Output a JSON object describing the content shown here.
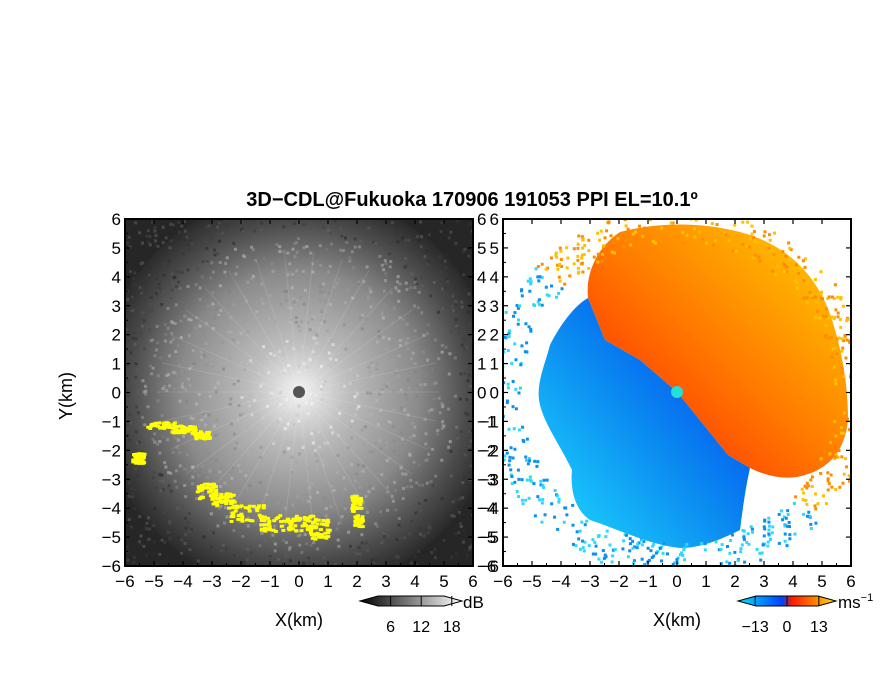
{
  "title": "3D−CDL@Fukuoka 170906 191053 PPI EL=10.1º",
  "colors": {
    "frame": "#000000",
    "echo_highlight": "#ffff00",
    "radar_center_left": "#555555",
    "radar_center_right": "#22e0d8"
  },
  "chart_data": [
    {
      "type": "heatmap",
      "panel": "left",
      "quantity": "SNR",
      "xlabel": "X(km)",
      "ylabel": "Y(km)",
      "xlim": [
        -6,
        6
      ],
      "ylim": [
        -6,
        6
      ],
      "xticks": [
        "−6",
        "−5",
        "−4",
        "−3",
        "−2",
        "−1",
        "0",
        "1",
        "2",
        "3",
        "4",
        "5",
        "6"
      ],
      "yticks": [
        "−6",
        "−5",
        "−4",
        "−3",
        "−2",
        "−1",
        "0",
        "1",
        "2",
        "3",
        "4",
        "5",
        "6"
      ],
      "colorbar": {
        "unit": "dB",
        "ticks": [
          "6",
          "12",
          "18"
        ],
        "tick_values": [
          6,
          12,
          18
        ],
        "range": [
          0,
          20
        ],
        "colors": [
          "#000000",
          "#ffffff"
        ]
      },
      "grid": false
    },
    {
      "type": "heatmap",
      "panel": "right",
      "quantity": "Doppler velocity",
      "xlabel": "X(km)",
      "ylabel": "",
      "xlim": [
        -6,
        6
      ],
      "ylim": [
        -6,
        6
      ],
      "xticks": [
        "−6",
        "−5",
        "−4",
        "−3",
        "−2",
        "−1",
        "0",
        "1",
        "2",
        "3",
        "4",
        "5",
        "6"
      ],
      "yticks": [
        "−6",
        "−5",
        "−4",
        "−3",
        "−2",
        "−1",
        "0",
        "1",
        "2",
        "3",
        "4",
        "5",
        "6"
      ],
      "colorbar": {
        "unit": "ms",
        "unit_exp": "−1",
        "ticks": [
          "−13",
          "0",
          "13"
        ],
        "tick_values": [
          -13,
          0,
          13
        ],
        "range": [
          -20,
          20
        ],
        "colors": [
          "#00e5ff",
          "#0040ff",
          "#ff1a00",
          "#ffe000"
        ]
      },
      "grid": false
    }
  ]
}
